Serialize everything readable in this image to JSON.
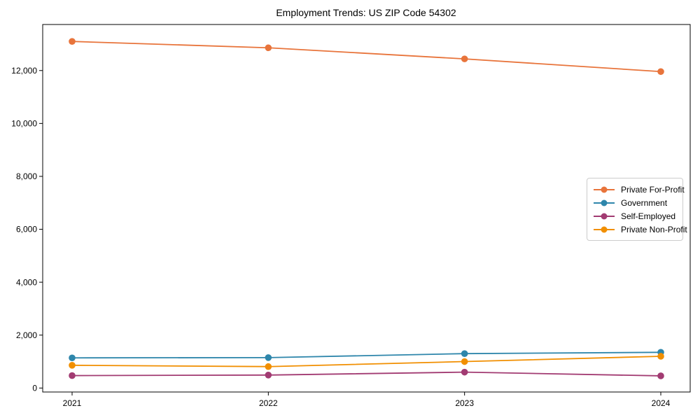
{
  "figure": {
    "background": "#ffffff",
    "spine_color": "#000000",
    "text_color": "#000000"
  },
  "chart_data": {
    "type": "line",
    "title": "Employment Trends: US ZIP Code 54302",
    "xlabel": "",
    "ylabel": "",
    "categories": [
      "2021",
      "2022",
      "2023",
      "2024"
    ],
    "series": [
      {
        "name": "Private For-Profit",
        "color": "#E8743B",
        "values": [
          13100,
          12860,
          12440,
          11960
        ]
      },
      {
        "name": "Government",
        "color": "#2E86AB",
        "values": [
          1140,
          1150,
          1300,
          1350
        ]
      },
      {
        "name": "Self-Employed",
        "color": "#A23B72",
        "values": [
          470,
          490,
          600,
          460
        ]
      },
      {
        "name": "Private Non-Profit",
        "color": "#F18F01",
        "values": [
          860,
          810,
          1000,
          1200
        ]
      }
    ],
    "ylim": [
      -150,
      13740
    ],
    "yticks": [
      0,
      2000,
      4000,
      6000,
      8000,
      10000,
      12000
    ],
    "ytick_labels": [
      "0",
      "2,000",
      "4,000",
      "6,000",
      "8,000",
      "10,000",
      "12,000"
    ],
    "grid": false,
    "legend_position": "center-right",
    "marker": "circle"
  }
}
